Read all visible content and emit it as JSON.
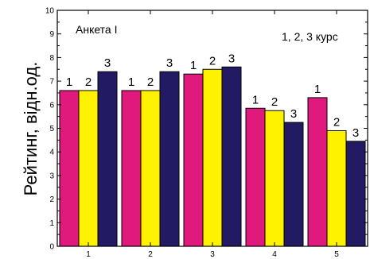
{
  "chart_data": {
    "type": "bar",
    "categories": [
      "1",
      "2",
      "3",
      "4",
      "5"
    ],
    "series": [
      {
        "name": "1",
        "values": [
          6.6,
          6.6,
          7.3,
          5.85,
          6.3
        ],
        "color": "#e0197d"
      },
      {
        "name": "2",
        "values": [
          6.6,
          6.6,
          7.5,
          5.75,
          4.9
        ],
        "color": "#fff200"
      },
      {
        "name": "3",
        "values": [
          7.4,
          7.4,
          7.6,
          5.25,
          4.45
        ],
        "color": "#221b63"
      }
    ],
    "title": "",
    "annotations": [
      "Анкета І",
      "1, 2, 3 курс"
    ],
    "xlabel": "",
    "ylabel": "Рейтинг, відн.од.",
    "ylim": [
      0,
      10
    ],
    "yticks": [
      "0",
      "1",
      "2",
      "3",
      "4",
      "5",
      "6",
      "7",
      "8",
      "9",
      "10"
    ],
    "grid": false,
    "legend": "none"
  }
}
